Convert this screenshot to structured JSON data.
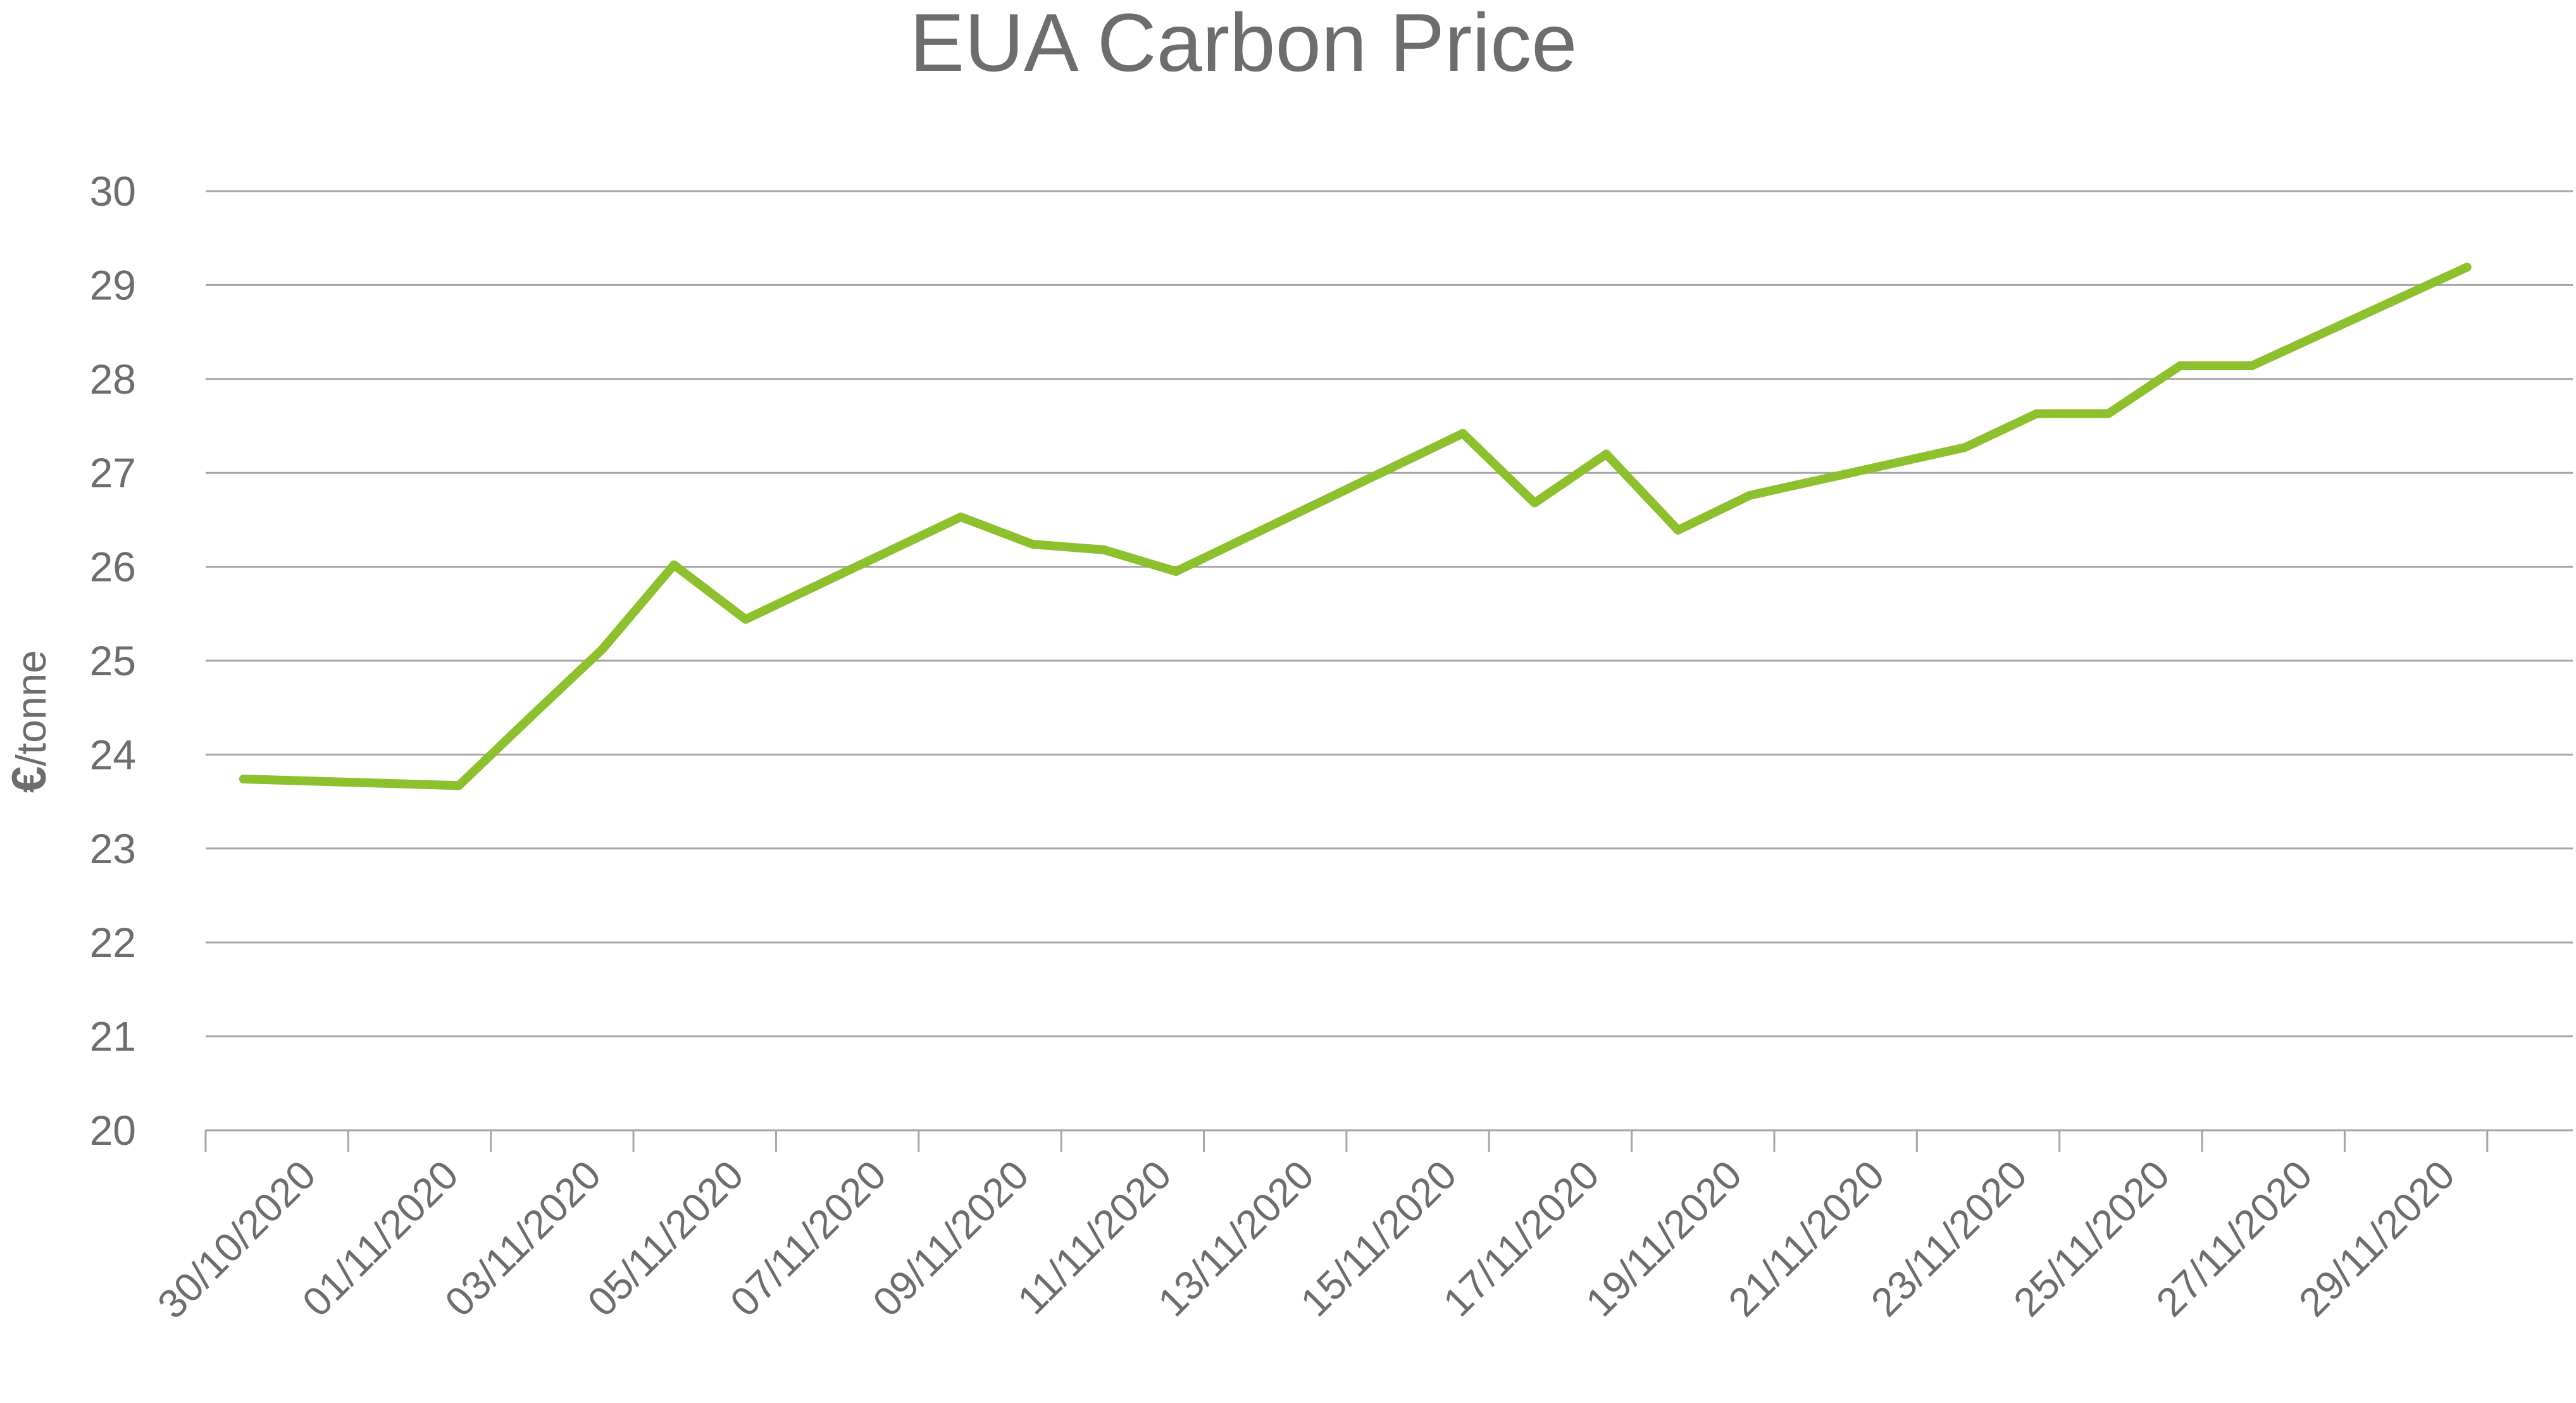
{
  "chart_data": {
    "type": "line",
    "title": "EUA Carbon Price",
    "ylabel": "€/tonne",
    "ylabel_parts": [
      "€",
      "/tonne"
    ],
    "xlabel": "",
    "ylim": [
      20,
      30
    ],
    "y_ticks": [
      "20",
      "21",
      "22",
      "23",
      "24",
      "25",
      "26",
      "27",
      "28",
      "29",
      "30"
    ],
    "x_ticks": [
      "30/10/2020",
      "01/11/2020",
      "03/11/2020",
      "05/11/2020",
      "07/11/2020",
      "09/11/2020",
      "11/11/2020",
      "13/11/2020",
      "15/11/2020",
      "17/11/2020",
      "19/11/2020",
      "21/11/2020",
      "23/11/2020",
      "25/11/2020",
      "27/11/2020",
      "29/11/2020"
    ],
    "x_range": [
      "30/10/2020",
      "01/12/2020"
    ],
    "grid": true,
    "legend": "none",
    "line_color": "#8dc02d",
    "series": [
      {
        "x": [
          "30/10/2020",
          "02/11/2020",
          "03/11/2020",
          "04/11/2020",
          "05/11/2020",
          "06/11/2020",
          "09/11/2020",
          "10/11/2020",
          "11/11/2020",
          "12/11/2020",
          "16/11/2020",
          "17/11/2020",
          "18/11/2020",
          "19/11/2020",
          "20/11/2020",
          "23/11/2020",
          "24/11/2020",
          "25/11/2020",
          "26/11/2020",
          "27/11/2020",
          "30/11/2020"
        ],
        "values": [
          23.74,
          23.67,
          24.4,
          25.12,
          26.02,
          25.44,
          26.53,
          26.24,
          26.18,
          25.95,
          27.42,
          26.68,
          27.2,
          26.39,
          26.76,
          27.27,
          27.63,
          27.63,
          28.14,
          28.14,
          29.19
        ]
      }
    ]
  }
}
